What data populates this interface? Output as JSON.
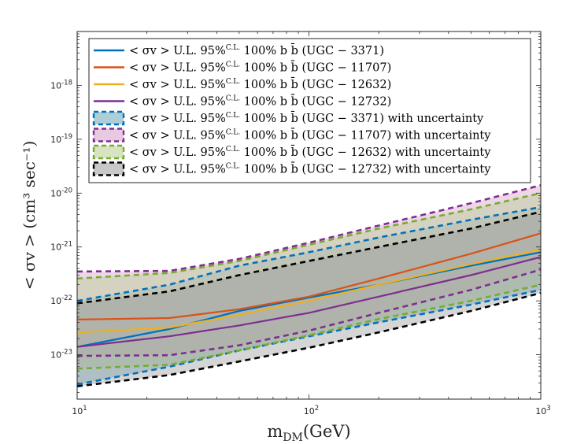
{
  "chart_data": {
    "type": "line",
    "title": "",
    "xlabel": "m_DM(GeV)",
    "ylabel": "< σv > (cm³ sec⁻¹)",
    "xscale": "log",
    "yscale": "log",
    "xlim": [
      10,
      1000
    ],
    "ylim": [
      1.5e-24,
      1e-17
    ],
    "x_ticks": [
      {
        "value": 10,
        "base": "10",
        "exp": "1"
      },
      {
        "value": 100,
        "base": "10",
        "exp": "2"
      },
      {
        "value": 1000,
        "base": "10",
        "exp": "3"
      }
    ],
    "y_ticks": [
      {
        "value": 1e-23,
        "base": "10",
        "exp": "-23"
      },
      {
        "value": 1e-22,
        "base": "10",
        "exp": "-22"
      },
      {
        "value": 1e-21,
        "base": "10",
        "exp": "-21"
      },
      {
        "value": 1e-20,
        "base": "10",
        "exp": "-20"
      },
      {
        "value": 1e-19,
        "base": "10",
        "exp": "-19"
      },
      {
        "value": 1e-18,
        "base": "10",
        "exp": "-18"
      }
    ],
    "grid": false,
    "legend_position": "top-right",
    "x": [
      10,
      25,
      50,
      100,
      200,
      500,
      1000
    ],
    "series": [
      {
        "name": "UGC − 3371",
        "kind": "line",
        "color": "#0072bd",
        "values": [
          1.4e-23,
          3e-23,
          6.5e-23,
          1.15e-22,
          2e-22,
          4.5e-22,
          8e-22
        ]
      },
      {
        "name": "UGC − 11707",
        "kind": "line",
        "color": "#d95319",
        "values": [
          4.5e-23,
          4.8e-23,
          7e-23,
          1.2e-22,
          2.6e-22,
          7.5e-22,
          1.8e-21
        ]
      },
      {
        "name": "UGC − 12632",
        "kind": "line",
        "color": "#edb120",
        "values": [
          2.6e-23,
          3.2e-23,
          5.5e-23,
          1e-22,
          2e-22,
          4.8e-22,
          9e-22
        ]
      },
      {
        "name": "UGC − 12732",
        "kind": "line",
        "color": "#7e2f8e",
        "values": [
          1.4e-23,
          2.2e-23,
          3.5e-23,
          6e-23,
          1.2e-22,
          3e-22,
          6.5e-22
        ]
      },
      {
        "name": "UGC − 3371 with uncertainty",
        "kind": "band",
        "color": "#0072bd",
        "fill": "#6aa6b6",
        "upper": [
          1e-22,
          2e-22,
          4.5e-22,
          8e-22,
          1.5e-21,
          3.2e-21,
          5.5e-21
        ],
        "lower": [
          2.8e-24,
          6e-24,
          1.2e-23,
          2.2e-23,
          4e-23,
          8.5e-23,
          1.6e-22
        ]
      },
      {
        "name": "UGC − 11707 with uncertainty",
        "kind": "band",
        "color": "#7e2f8e",
        "fill": "#d49ec4",
        "upper": [
          3.5e-22,
          3.6e-22,
          6e-22,
          1.2e-21,
          2.5e-21,
          6.5e-21,
          1.4e-20
        ],
        "lower": [
          9.5e-24,
          9.8e-24,
          1.5e-23,
          2.8e-23,
          6e-23,
          1.6e-22,
          3.8e-22
        ]
      },
      {
        "name": "UGC − 12632 with uncertainty",
        "kind": "band",
        "color": "#77ac30",
        "fill": "#b6cc8e",
        "upper": [
          2.6e-22,
          3.3e-22,
          5.5e-22,
          1.1e-21,
          2.2e-21,
          5e-21,
          1e-20
        ],
        "lower": [
          5.5e-24,
          6.5e-24,
          1.2e-23,
          2.3e-23,
          4.6e-23,
          1e-22,
          2e-22
        ]
      },
      {
        "name": "UGC − 12732 with uncertainty",
        "kind": "band",
        "color": "#000000",
        "fill": "#9a9a9a",
        "upper": [
          9e-23,
          1.5e-22,
          3e-22,
          5.5e-22,
          1e-21,
          2.2e-21,
          4.5e-21
        ],
        "lower": [
          2.6e-24,
          4.2e-24,
          7.5e-24,
          1.35e-23,
          2.6e-23,
          6.5e-23,
          1.4e-22
        ]
      }
    ],
    "legend": [
      {
        "series_index": 0,
        "parts": [
          "< σv >  U.L. 95%",
          "C.L.",
          " 100% b b̄ (UGC − 3371)"
        ]
      },
      {
        "series_index": 1,
        "parts": [
          "< σv >  U.L. 95%",
          "C.L.",
          " 100% b b̄ (UGC − 11707)"
        ]
      },
      {
        "series_index": 2,
        "parts": [
          "< σv >  U.L. 95%",
          "C.L.",
          " 100% b b̄ (UGC − 12632)"
        ]
      },
      {
        "series_index": 3,
        "parts": [
          "< σv >  U.L. 95%",
          "C.L.",
          " 100% b b̄ (UGC − 12732)"
        ]
      },
      {
        "series_index": 4,
        "parts": [
          "< σv >  U.L. 95%",
          "C.L.",
          " 100% b b̄ (UGC − 3371) with uncertainty"
        ]
      },
      {
        "series_index": 5,
        "parts": [
          "< σv >  U.L. 95%",
          "C.L.",
          " 100% b b̄ (UGC − 11707) with uncertainty"
        ]
      },
      {
        "series_index": 6,
        "parts": [
          "< σv >  U.L. 95%",
          "C.L.",
          " 100% b b̄ (UGC − 12632) with uncertainty"
        ]
      },
      {
        "series_index": 7,
        "parts": [
          "< σv >  U.L. 95%",
          "C.L.",
          " 100% b b̄ (UGC − 12732) with uncertainty"
        ]
      }
    ]
  }
}
